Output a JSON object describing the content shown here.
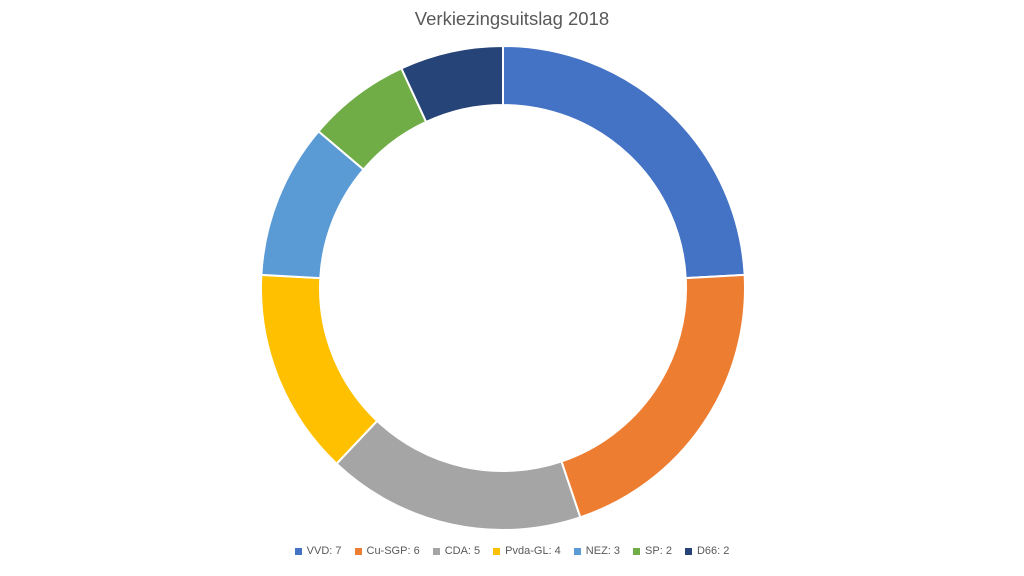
{
  "chart_data": {
    "type": "pie",
    "subtype": "doughnut",
    "title": "Verkiezingsuitslag 2018",
    "legend_position": "bottom",
    "slices": [
      {
        "label": "VVD",
        "value": 7,
        "color": "#4472C4"
      },
      {
        "label": "Cu-SGP",
        "value": 6,
        "color": "#ED7D31"
      },
      {
        "label": "CDA",
        "value": 5,
        "color": "#A5A5A5"
      },
      {
        "label": "Pvda-GL",
        "value": 4,
        "color": "#FFC000"
      },
      {
        "label": "NEZ",
        "value": 3,
        "color": "#5B9BD5"
      },
      {
        "label": "SP",
        "value": 2,
        "color": "#70AD47"
      },
      {
        "label": "D66",
        "value": 2,
        "color": "#264478"
      }
    ]
  }
}
